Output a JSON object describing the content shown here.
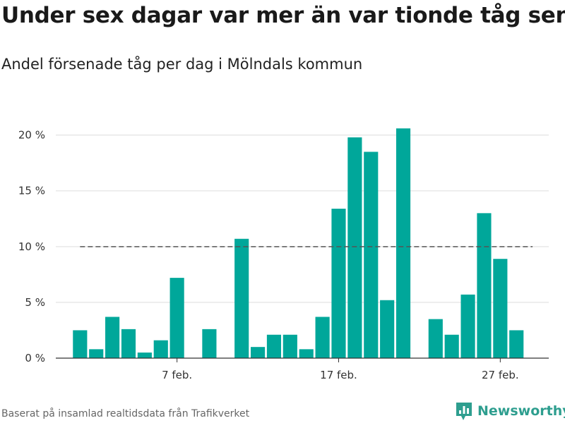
{
  "title": "Under sex dagar var mer än var tionde tåg sent",
  "subtitle": "Andel försenade tåg per dag i Mölndals kommun",
  "source": "Baserat på insamlad realtidsdata från Trafikverket",
  "logo": {
    "text": "Newsworthy",
    "icon": "newsworthy-bar-chart-icon"
  },
  "colors": {
    "bar": "#00a79a",
    "reference_line": "#555555",
    "grid": "#dddddd",
    "logo": "#2e9e8f"
  },
  "chart_data": {
    "type": "bar",
    "x": [
      1,
      2,
      3,
      4,
      5,
      6,
      7,
      8,
      9,
      10,
      11,
      12,
      13,
      14,
      15,
      16,
      17,
      18,
      19,
      20,
      21,
      22,
      23,
      24,
      25,
      26,
      27,
      28
    ],
    "values": [
      2.5,
      0.8,
      3.7,
      2.6,
      0.5,
      1.6,
      7.2,
      null,
      2.6,
      null,
      10.7,
      1.0,
      2.1,
      2.1,
      0.8,
      3.7,
      13.4,
      19.8,
      18.5,
      5.2,
      20.6,
      null,
      3.5,
      2.1,
      5.7,
      13.0,
      8.9,
      2.5
    ],
    "xlim": [
      -0.5,
      30
    ],
    "ylim": [
      0,
      22
    ],
    "yticks": [
      0,
      5,
      10,
      15,
      20
    ],
    "ytick_labels": [
      "0 %",
      "5 %",
      "10 %",
      "15 %",
      "20 %"
    ],
    "xticks": [
      7,
      17,
      27
    ],
    "xtick_labels": [
      "7 feb.",
      "17 feb.",
      "27 feb."
    ],
    "reference_line": {
      "value": 10,
      "x_from": 1,
      "x_to": 29,
      "style": "dashed"
    },
    "grid": true,
    "xlabel": "",
    "ylabel": ""
  }
}
